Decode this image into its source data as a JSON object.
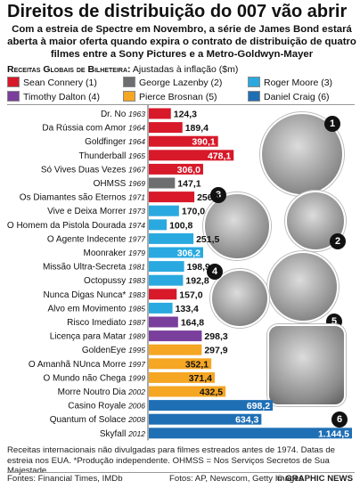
{
  "title": "Direitos de distribuição do 007 vão abrir",
  "subtitle": "Com a estreia de Spectre em Novembro, a série de James Bond estará aberta à maior oferta quando expira o contrato de distribuição de quatro filmes entre a Sony Pictures e a Metro-Goldwyn-Mayer",
  "legend_title": "Receitas Globais de Bilheteira:",
  "legend_subtitle": "Ajustadas à inflação ($m)",
  "colors": {
    "connery": "#d7192a",
    "lazenby": "#6d6e70",
    "moore": "#29a9e0",
    "dalton": "#7a3e9d",
    "brosnan": "#f5a623",
    "craig": "#1f6fb5"
  },
  "legend": [
    {
      "label": "Sean Connery (1)",
      "color": "#d7192a"
    },
    {
      "label": "George Lazenby (2)",
      "color": "#6d6e70"
    },
    {
      "label": "Roger Moore (3)",
      "color": "#29a9e0"
    },
    {
      "label": "Timothy Dalton (4)",
      "color": "#7a3e9d"
    },
    {
      "label": "Pierce Brosnan (5)",
      "color": "#f5a623"
    },
    {
      "label": "Daniel Craig (6)",
      "color": "#1f6fb5"
    }
  ],
  "badges": [
    "1",
    "2",
    "3",
    "4",
    "5",
    "6"
  ],
  "chart_data": {
    "type": "bar",
    "orientation": "horizontal",
    "title": "Receitas Globais de Bilheteira: Ajustadas à inflação ($m)",
    "xlim": [
      0,
      1144.5
    ],
    "categories": [
      {
        "film": "Dr. No",
        "year": "1963",
        "value": 124.3,
        "label": "124,3",
        "actor": "connery"
      },
      {
        "film": "Da Rússia com Amor",
        "year": "1964",
        "value": 189.4,
        "label": "189,4",
        "actor": "connery"
      },
      {
        "film": "Goldfinger",
        "year": "1964",
        "value": 390.1,
        "label": "390,1",
        "actor": "connery"
      },
      {
        "film": "Thunderball",
        "year": "1965",
        "value": 478.1,
        "label": "478,1",
        "actor": "connery"
      },
      {
        "film": "Só Vives Duas Vezes",
        "year": "1967",
        "value": 306.0,
        "label": "306,0",
        "actor": "connery"
      },
      {
        "film": "OHMSS",
        "year": "1969",
        "value": 147.1,
        "label": "147,1",
        "actor": "lazenby"
      },
      {
        "film": "Os Diamantes são Eternos",
        "year": "1971",
        "value": 256.5,
        "label": "256,5",
        "actor": "connery"
      },
      {
        "film": "Vive e Deixa Morrer",
        "year": "1973",
        "value": 170.0,
        "label": "170,0",
        "actor": "moore"
      },
      {
        "film": "O Homem da Pistola Dourada",
        "year": "1974",
        "value": 100.8,
        "label": "100,8",
        "actor": "moore"
      },
      {
        "film": "O Agente Indecente",
        "year": "1977",
        "value": 251.5,
        "label": "251,5",
        "actor": "moore"
      },
      {
        "film": "Moonraker",
        "year": "1979",
        "value": 306.2,
        "label": "306,2",
        "actor": "moore"
      },
      {
        "film": "Missão Ultra-Secreta",
        "year": "1981",
        "value": 198.9,
        "label": "198,9",
        "actor": "moore"
      },
      {
        "film": "Octopussy",
        "year": "1983",
        "value": 192.8,
        "label": "192,8",
        "actor": "moore"
      },
      {
        "film": "Nunca Digas Nunca*",
        "year": "1983",
        "value": 157.0,
        "label": "157,0",
        "actor": "connery"
      },
      {
        "film": "Alvo em Movimento",
        "year": "1985",
        "value": 133.4,
        "label": "133,4",
        "actor": "moore"
      },
      {
        "film": "Risco Imediato",
        "year": "1987",
        "value": 164.8,
        "label": "164,8",
        "actor": "dalton"
      },
      {
        "film": "Licença para Matar",
        "year": "1989",
        "value": 298.3,
        "label": "298,3",
        "actor": "dalton"
      },
      {
        "film": "GoldenEye",
        "year": "1995",
        "value": 297.9,
        "label": "297,9",
        "actor": "brosnan"
      },
      {
        "film": "O Amanhã NUnca Morre",
        "year": "1997",
        "value": 352.1,
        "label": "352,1",
        "actor": "brosnan"
      },
      {
        "film": "O Mundo não Chega",
        "year": "1999",
        "value": 371.4,
        "label": "371,4",
        "actor": "brosnan"
      },
      {
        "film": "Morre Noutro Dia",
        "year": "2002",
        "value": 432.5,
        "label": "432,5",
        "actor": "brosnan"
      },
      {
        "film": "Casino Royale",
        "year": "2006",
        "value": 698.2,
        "label": "698,2",
        "actor": "craig"
      },
      {
        "film": "Quantum of Solace",
        "year": "2008",
        "value": 634.3,
        "label": "634,3",
        "actor": "craig"
      },
      {
        "film": "Skyfall",
        "year": "2012",
        "value": 1144.5,
        "label": "1.144,5",
        "actor": "craig"
      }
    ]
  },
  "footnote": "Receitas internacionais não divulgadas para filmes estreados antes de 1974. Datas de estreia nos EUA. *Produção independente. OHMSS = Nos Serviços Secretos de Sua Majestade",
  "sources_left": "Fontes: Financial Times, IMDb",
  "sources_mid": "Fotos: AP, Newscom, Getty Images",
  "sources_right": "© GRAPHIC NEWS"
}
